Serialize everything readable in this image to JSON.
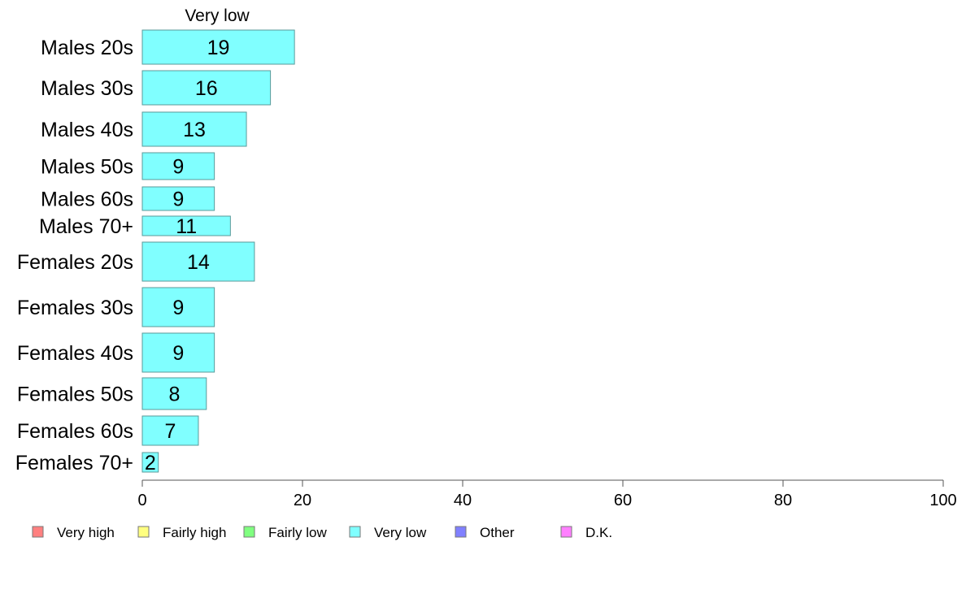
{
  "chart_data": {
    "type": "bar",
    "orientation": "horizontal",
    "header": "Very low",
    "categories": [
      "Males 20s",
      "Males 30s",
      "Males 40s",
      "Males 50s",
      "Males 60s",
      "Males 70+",
      "Females 20s",
      "Females 30s",
      "Females 40s",
      "Females 50s",
      "Females 60s",
      "Females 70+"
    ],
    "series": [
      {
        "name": "Very low",
        "values": [
          19,
          16,
          13,
          9,
          9,
          11,
          14,
          9,
          9,
          8,
          7,
          2
        ]
      }
    ],
    "value_labels": [
      "19",
      "16",
      "13",
      "9",
      "9",
      "11",
      "14",
      "9",
      "9",
      "8",
      "7",
      "2"
    ],
    "xlim": [
      0,
      100
    ],
    "xticks": [
      "0",
      "20",
      "40",
      "60",
      "80",
      "100"
    ],
    "grid": false,
    "legend": {
      "placement": "bottom",
      "items": [
        {
          "label": "Very high",
          "color": "#ff8080"
        },
        {
          "label": "Fairly high",
          "color": "#ffff80"
        },
        {
          "label": "Fairly low",
          "color": "#80ff80"
        },
        {
          "label": "Very low",
          "color": "#80ffff"
        },
        {
          "label": "Other",
          "color": "#8080ff"
        },
        {
          "label": "D.K.",
          "color": "#ff80ff"
        }
      ]
    },
    "bar_color": "#80ffff"
  }
}
